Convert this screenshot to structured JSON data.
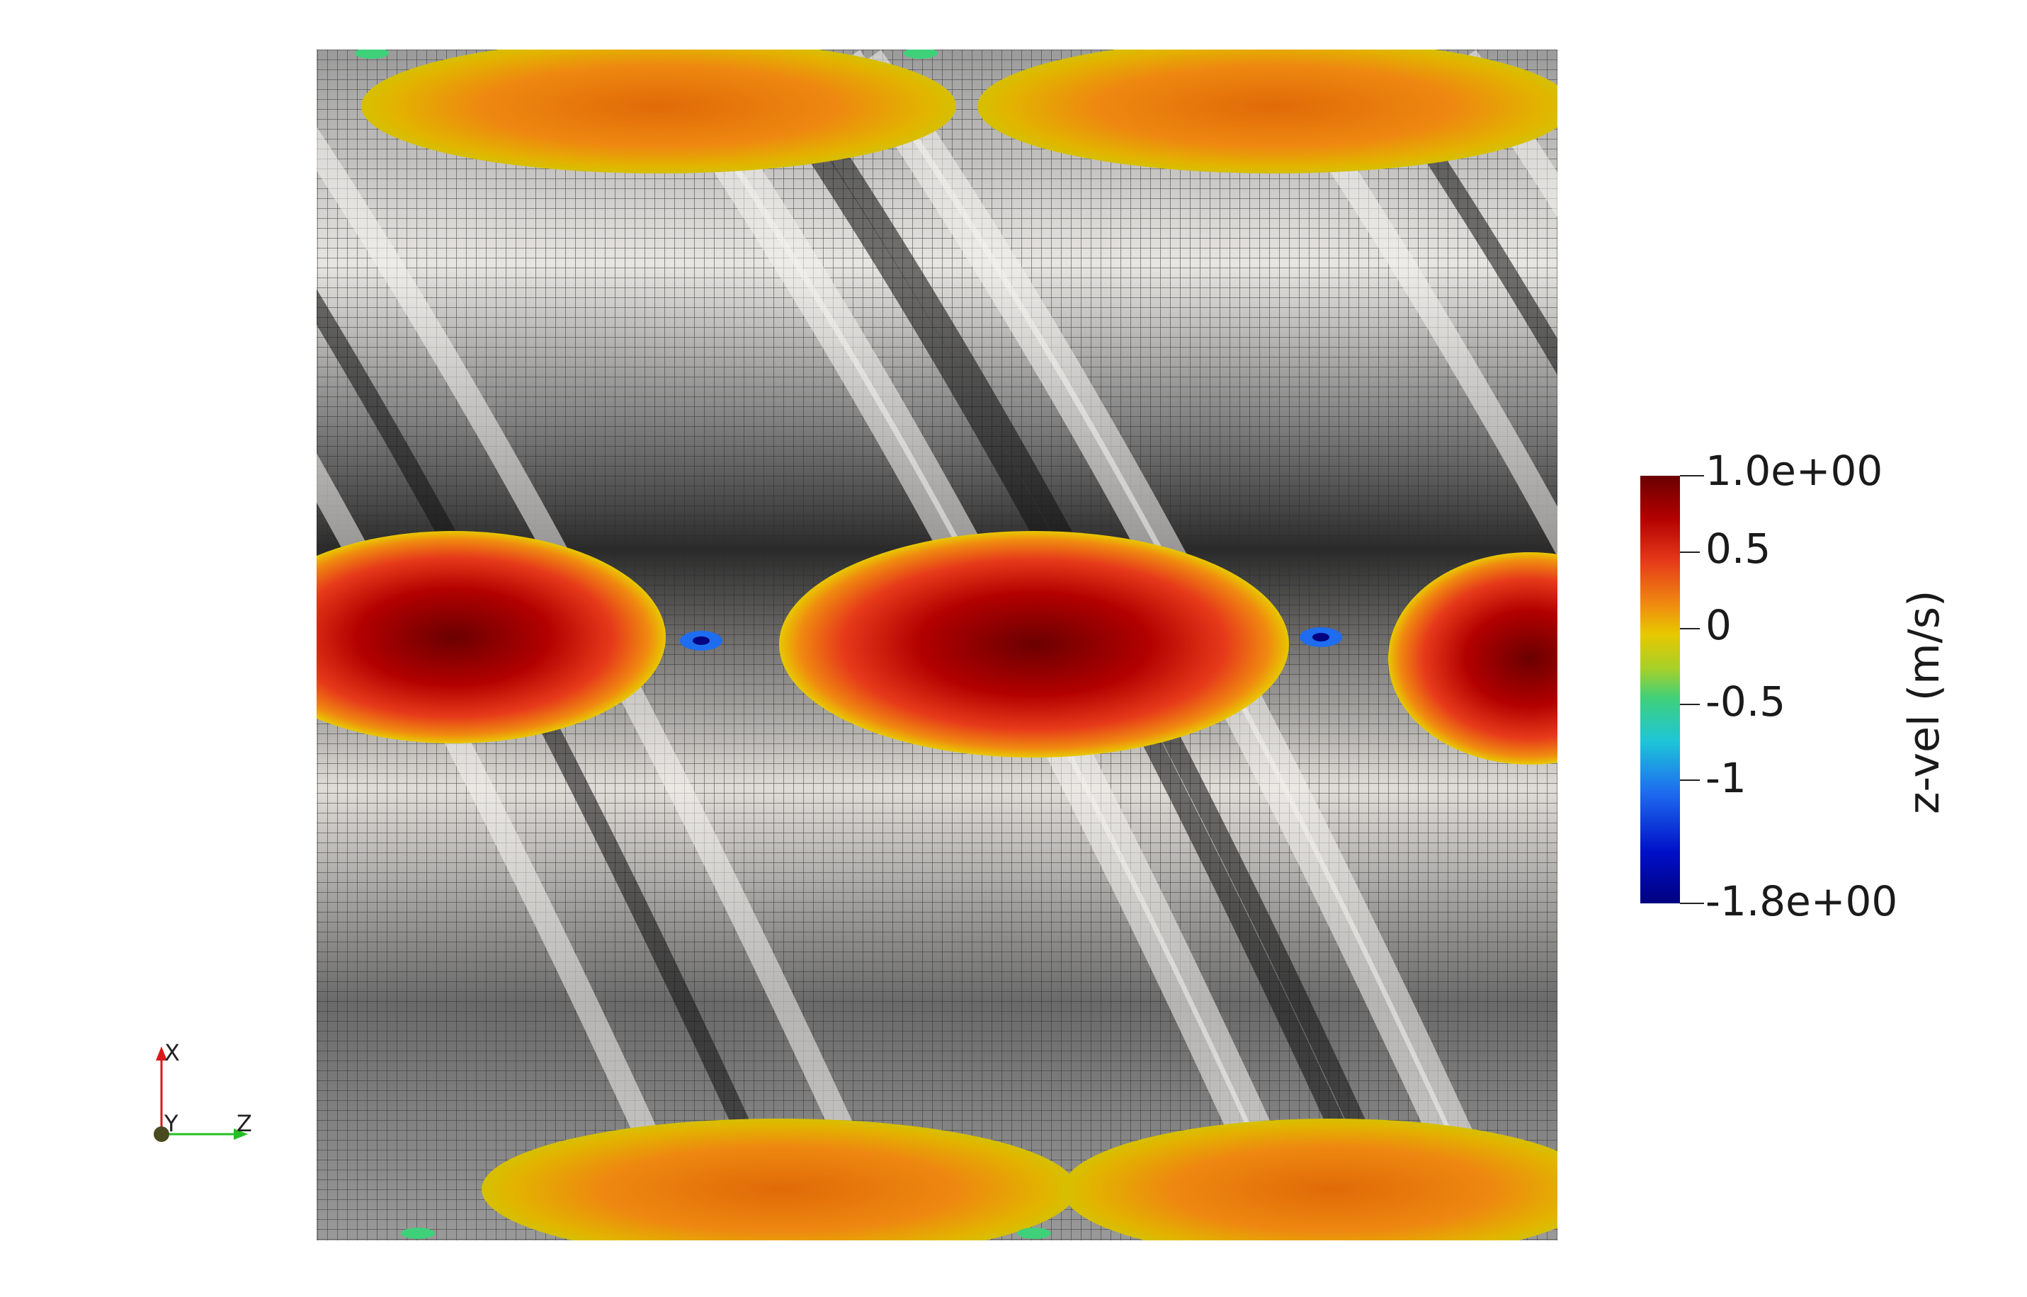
{
  "scalar_bar": {
    "title": "z-vel (m/s)",
    "ticks": [
      "1.0e+00",
      "0.5",
      "0",
      "-0.5",
      "-1",
      "-1.8e+00"
    ],
    "range": [
      -1.8,
      1.0
    ],
    "colormap": [
      "#6b0000",
      "#b30000",
      "#e63a1a",
      "#f08a10",
      "#e8c800",
      "#a8d028",
      "#3fd07a",
      "#1ec6d8",
      "#1e6cf0",
      "#0010c8",
      "#000080"
    ]
  },
  "orientation_axes": {
    "x_label": "X",
    "y_label": "Y",
    "z_label": "Z",
    "x_color": "#d81a1a",
    "y_color": "#4a4a20",
    "z_color": "#22c022"
  },
  "scene": {
    "mesh_color": "#ececec",
    "hot_color": "#8a0000",
    "warm_color": "#f07a0a",
    "cool_color": "#d4b800"
  }
}
